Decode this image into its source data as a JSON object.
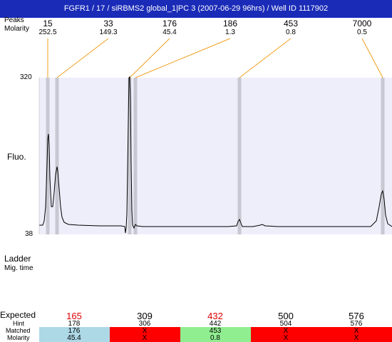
{
  "title": "FGFR1 / 17 / siRBMS2 global_1|PC 3 (2007-06-29 96hrs) / Well ID 1117902",
  "labels": {
    "peaks": "Peaks",
    "molarity": "Molarity",
    "fluo": "Fluo.",
    "ladder": "Ladder",
    "mig_time": "Mig. time",
    "expected": "Expected",
    "hint": "Hint",
    "matched": "Matched",
    "molarity_row": "Molarity"
  },
  "chart_data": {
    "type": "line",
    "ylim": [
      38,
      320
    ],
    "yticks": [
      "320",
      "38"
    ],
    "ylabel": "Fluo.",
    "peaks": [
      {
        "size": "15",
        "molarity": "252.5"
      },
      {
        "size": "33",
        "molarity": "149.3"
      },
      {
        "size": "176",
        "molarity": "45.4"
      },
      {
        "size": "186",
        "molarity": "1.3"
      },
      {
        "size": "453",
        "molarity": "0.8"
      },
      {
        "size": "7000",
        "molarity": "0.5"
      }
    ],
    "series_color": "#000000",
    "plot_bg": "#eeeefb",
    "marker_color": "#c8c8d2",
    "connector_color": "#f0a020"
  },
  "table": {
    "columns": [
      {
        "expected": "165",
        "expected_color": "#dd0000",
        "hint": "178",
        "matched": "176",
        "molarity": "45.4",
        "bg": "#add8e6"
      },
      {
        "expected": "309",
        "expected_color": "#000000",
        "hint": "306",
        "matched": "X",
        "molarity": "X",
        "bg": "#ff0000"
      },
      {
        "expected": "432",
        "expected_color": "#dd0000",
        "hint": "442",
        "matched": "453",
        "molarity": "0.8",
        "bg": "#90ee90"
      },
      {
        "expected": "500",
        "expected_color": "#000000",
        "hint": "504",
        "matched": "X",
        "molarity": "X",
        "bg": "#ff0000"
      },
      {
        "expected": "576",
        "expected_color": "#000000",
        "hint": "576",
        "matched": "X",
        "molarity": "X",
        "bg": "#ff0000"
      }
    ]
  }
}
